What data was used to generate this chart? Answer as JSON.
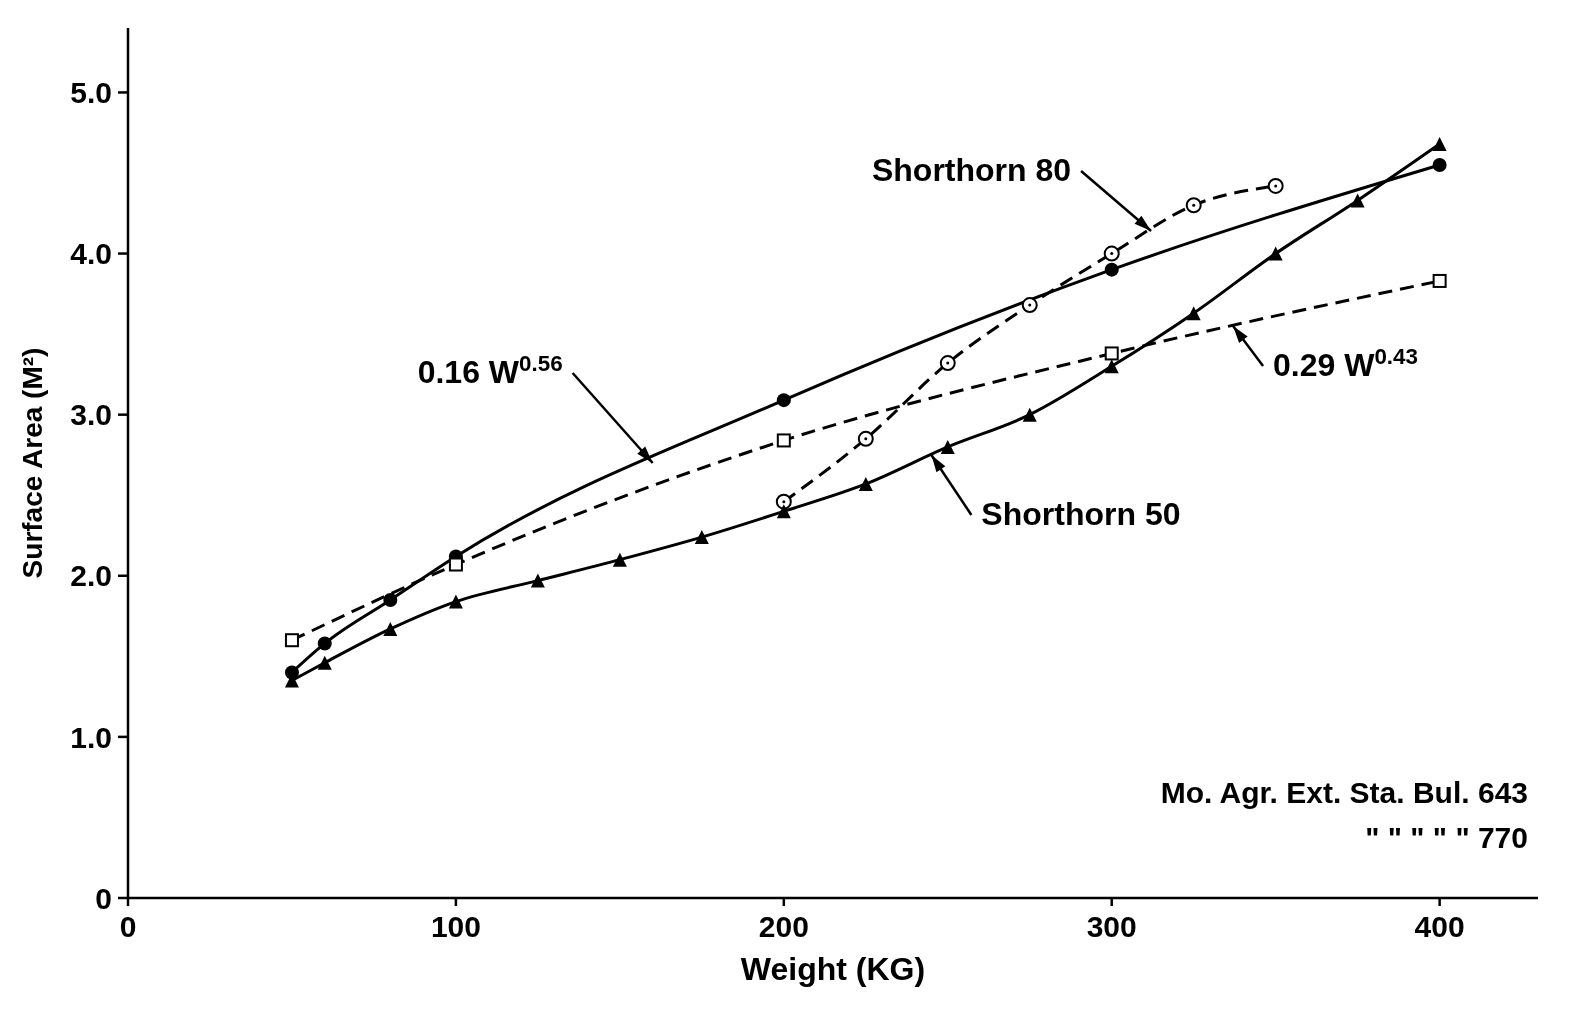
{
  "chart_data": {
    "type": "line",
    "xlabel": "Weight (KG)",
    "ylabel": "Surface Area (M²)",
    "xlim": [
      0,
      430
    ],
    "ylim": [
      0,
      5.4
    ],
    "xticks": [
      0,
      100,
      200,
      300,
      400
    ],
    "yticks": [
      0,
      {
        "value": 1,
        "label": "1.0"
      },
      {
        "value": 2,
        "label": "2.0"
      },
      {
        "value": 3,
        "label": "3.0"
      },
      {
        "value": 4,
        "label": "4.0"
      },
      {
        "value": 5,
        "label": "5.0"
      }
    ],
    "grid": false,
    "series": [
      {
        "color": "#000000",
        "line_style": "solid",
        "marker": "circle",
        "x": [
          50,
          60,
          80,
          100,
          200,
          300,
          400
        ],
        "values": [
          1.4,
          1.58,
          1.85,
          2.12,
          3.09,
          3.9,
          4.55
        ]
      },
      {
        "color": "#000000",
        "line_style": "dashed",
        "marker": "square",
        "x": [
          50,
          100,
          200,
          300,
          400
        ],
        "values": [
          1.6,
          2.07,
          2.84,
          3.38,
          3.83
        ]
      },
      {
        "color": "#000000",
        "line_style": "dashed",
        "marker": "circle",
        "x": [
          200,
          225,
          250,
          275,
          300,
          325,
          350
        ],
        "values": [
          2.46,
          2.85,
          3.32,
          3.68,
          4.0,
          4.3,
          4.42
        ]
      },
      {
        "color": "#000000",
        "line_style": "solid",
        "marker": "triangle",
        "x": [
          50,
          60,
          80,
          100,
          125,
          150,
          175,
          200,
          225,
          250,
          275,
          300,
          325,
          350,
          375,
          400
        ],
        "values": [
          1.35,
          1.46,
          1.67,
          1.84,
          1.97,
          2.1,
          2.24,
          2.4,
          2.57,
          2.8,
          3.0,
          3.3,
          3.63,
          4.0,
          4.33,
          4.68
        ]
      }
    ],
    "annotations": [
      {
        "text": "0.16 W$^{0.56}$",
        "x": 160,
        "y": 2.7
      },
      {
        "text": "0.29 W$^{0.43}$",
        "x": 337,
        "y": 3.55
      },
      {
        "text": "Shorthorn 80",
        "x": 312,
        "y": 4.14
      },
      {
        "text": "Shorthorn 50",
        "x": 245,
        "y": 2.75
      },
      "Mo. Agr. Ext. Sta. Bul. 643",
      "\" \" \" \" \" 770"
    ]
  }
}
